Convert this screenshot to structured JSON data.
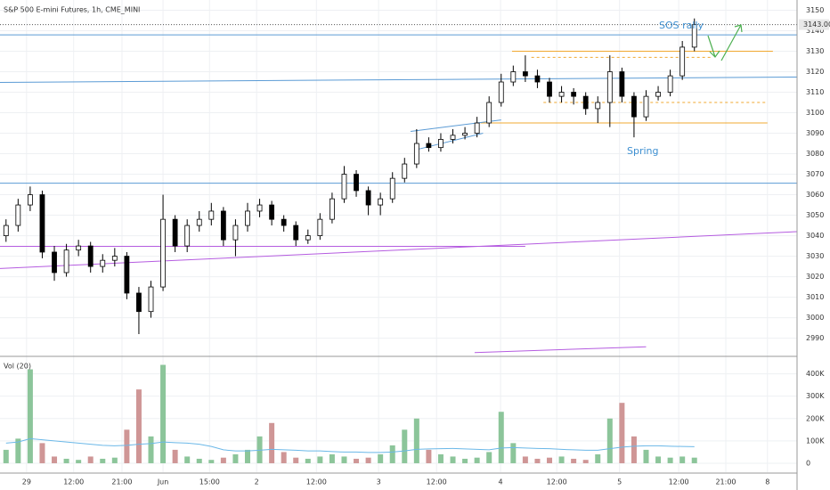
{
  "chart_data": {
    "type": "candlestick",
    "title": "S&P 500 E-mini Futures, 1h, CME_MINI",
    "x": [
      1,
      3,
      5,
      7,
      9,
      11,
      13,
      15,
      17,
      19,
      21,
      23,
      25,
      27,
      29,
      31,
      33,
      35,
      37,
      39,
      41,
      43,
      45,
      47,
      49,
      51,
      53,
      55,
      57,
      59,
      61,
      63,
      65,
      67,
      69,
      71,
      73,
      75,
      77,
      79,
      81,
      83,
      85,
      87,
      89,
      91,
      93,
      95,
      97,
      99,
      101,
      103,
      105,
      107,
      109,
      111,
      113,
      115
    ],
    "open": [
      3040,
      3045,
      3055,
      3060,
      3032,
      3022,
      3033,
      3035,
      3025,
      3028,
      3030,
      3012,
      3003,
      3015,
      3048,
      3035,
      3045,
      3048,
      3052,
      3038,
      3045,
      3052,
      3055,
      3048,
      3045,
      3038,
      3040,
      3048,
      3058,
      3070,
      3062,
      3055,
      3058,
      3068,
      3075,
      3085,
      3083,
      3087,
      3089,
      3090,
      3095,
      3105,
      3115,
      3120,
      3118,
      3115,
      3108,
      3110,
      3108,
      3102,
      3105,
      3120,
      3108,
      3098,
      3108,
      3110,
      3118,
      3132
    ],
    "high": [
      3048,
      3058,
      3064,
      3062,
      3035,
      3036,
      3038,
      3037,
      3031,
      3034,
      3032,
      3015,
      3018,
      3060,
      3050,
      3048,
      3052,
      3056,
      3054,
      3048,
      3056,
      3058,
      3057,
      3050,
      3047,
      3043,
      3051,
      3061,
      3074,
      3072,
      3064,
      3061,
      3071,
      3078,
      3092,
      3088,
      3090,
      3092,
      3093,
      3098,
      3108,
      3119,
      3123,
      3128,
      3121,
      3117,
      3113,
      3112,
      3110,
      3108,
      3128,
      3122,
      3110,
      3111,
      3113,
      3121,
      3135,
      3146
    ],
    "low": [
      3037,
      3042,
      3052,
      3029,
      3018,
      3020,
      3030,
      3022,
      3022,
      3025,
      3009,
      2992,
      3000,
      3013,
      3032,
      3032,
      3042,
      3045,
      3035,
      3030,
      3042,
      3049,
      3045,
      3042,
      3035,
      3036,
      3038,
      3046,
      3056,
      3059,
      3050,
      3050,
      3056,
      3066,
      3073,
      3081,
      3081,
      3085,
      3087,
      3088,
      3093,
      3103,
      3113,
      3115,
      3112,
      3105,
      3105,
      3104,
      3099,
      3095,
      3093,
      3105,
      3088,
      3096,
      3106,
      3108,
      3116,
      3130
    ],
    "close": [
      3045,
      3055,
      3060,
      3032,
      3022,
      3033,
      3035,
      3025,
      3028,
      3030,
      3012,
      3003,
      3015,
      3048,
      3035,
      3045,
      3048,
      3052,
      3038,
      3045,
      3052,
      3055,
      3048,
      3045,
      3038,
      3040,
      3048,
      3058,
      3070,
      3062,
      3055,
      3058,
      3068,
      3075,
      3085,
      3083,
      3087,
      3089,
      3090,
      3095,
      3105,
      3115,
      3120,
      3118,
      3115,
      3108,
      3110,
      3108,
      3102,
      3105,
      3120,
      3108,
      3098,
      3108,
      3110,
      3118,
      3132,
      3143
    ],
    "xlim": [
      0,
      132
    ],
    "xticks": [
      {
        "value": 4.4,
        "label": "29"
      },
      {
        "value": 12.2,
        "label": "12:00"
      },
      {
        "value": 20.2,
        "label": "21:00"
      },
      {
        "value": 27,
        "label": "Jun"
      },
      {
        "value": 34.7,
        "label": "15:00"
      },
      {
        "value": 42.5,
        "label": "2"
      },
      {
        "value": 52.4,
        "label": "12:00"
      },
      {
        "value": 62.7,
        "label": "3"
      },
      {
        "value": 72.3,
        "label": "12:00"
      },
      {
        "value": 82.9,
        "label": "4"
      },
      {
        "value": 92.2,
        "label": "12:00"
      },
      {
        "value": 102.6,
        "label": "5"
      },
      {
        "value": 112.4,
        "label": "12:00"
      },
      {
        "value": 120.2,
        "label": "21:00"
      },
      {
        "value": 127.1,
        "label": "8"
      }
    ],
    "ylim": [
      2982,
      3155
    ],
    "yticks": [
      2990,
      3000,
      3010,
      3020,
      3030,
      3040,
      3050,
      3060,
      3070,
      3080,
      3090,
      3100,
      3110,
      3120,
      3130,
      3140,
      3150
    ],
    "last_price": {
      "value": 3143,
      "label": "3143.00"
    },
    "annotations": [
      "SOS rally",
      "Spring"
    ],
    "lines": [
      {
        "x1": 0,
        "y1": 3138,
        "x2": 132,
        "y2": 3138,
        "color": "#5b9bd5",
        "dashed": false
      },
      {
        "x1": 0,
        "y1": 3114.8,
        "x2": 132,
        "y2": 3117.4,
        "color": "#5b9bd5",
        "dashed": false
      },
      {
        "x1": 0,
        "y1": 3065.6,
        "x2": 132,
        "y2": 3065.6,
        "color": "#5b9bd5",
        "dashed": false
      },
      {
        "x1": 0,
        "y1": 3024,
        "x2": 132,
        "y2": 3042,
        "color": "#b55ce0",
        "dashed": false
      },
      {
        "x1": 0,
        "y1": 3034.8,
        "x2": 87,
        "y2": 3034.8,
        "color": "#b55ce0",
        "dashed": false
      },
      {
        "x1": 78.6,
        "y1": 2983,
        "x2": 107,
        "y2": 2985.8,
        "color": "#b55ce0",
        "dashed": false
      },
      {
        "x1": 84.8,
        "y1": 3130,
        "x2": 128,
        "y2": 3130,
        "color": "#f0a830",
        "dashed": false
      },
      {
        "x1": 79.6,
        "y1": 3095,
        "x2": 127.1,
        "y2": 3095,
        "color": "#f0a830",
        "dashed": false
      },
      {
        "x1": 88,
        "y1": 3127,
        "x2": 118,
        "y2": 3127,
        "color": "#f0a830",
        "dashed": true
      },
      {
        "x1": 90,
        "y1": 3105,
        "x2": 126.8,
        "y2": 3105,
        "color": "#f0a830",
        "dashed": true
      },
      {
        "x1": 68,
        "y1": 3090.9,
        "x2": 83,
        "y2": 3096.5,
        "color": "#5b9bd5",
        "dashed": false
      },
      {
        "x1": 69,
        "y1": 3082,
        "x2": 80,
        "y2": 3090,
        "color": "#5b9bd5",
        "dashed": false
      }
    ],
    "volume": {
      "title": "Vol (20)",
      "values": [
        60000,
        110000,
        420000,
        90000,
        30000,
        20000,
        15000,
        30000,
        20000,
        25000,
        150000,
        330000,
        120000,
        440000,
        60000,
        30000,
        20000,
        15000,
        25000,
        40000,
        60000,
        120000,
        180000,
        50000,
        25000,
        20000,
        30000,
        40000,
        30000,
        20000,
        25000,
        40000,
        80000,
        150000,
        200000,
        60000,
        40000,
        30000,
        20000,
        25000,
        50000,
        230000,
        90000,
        30000,
        20000,
        25000,
        30000,
        20000,
        15000,
        40000,
        200000,
        270000,
        120000,
        60000,
        30000,
        25000,
        30000,
        25000
      ],
      "ma": [
        90000,
        95000,
        110000,
        105000,
        100000,
        95000,
        90000,
        85000,
        80000,
        78000,
        80000,
        85000,
        88000,
        95000,
        92000,
        90000,
        85000,
        75000,
        60000,
        55000,
        55000,
        58000,
        62000,
        60000,
        58000,
        55000,
        55000,
        52000,
        50000,
        50000,
        48000,
        48000,
        50000,
        55000,
        62000,
        64000,
        65000,
        66000,
        64000,
        62000,
        60000,
        68000,
        70000,
        68000,
        66000,
        65000,
        62000,
        60000,
        58000,
        58000,
        65000,
        72000,
        76000,
        78000,
        78000,
        76000,
        75000,
        74000
      ],
      "ylim": [
        -40000,
        470000
      ],
      "yticks": [
        0,
        {
          "value": 100000,
          "label": "100K"
        },
        {
          "value": 200000,
          "label": "200K"
        },
        {
          "value": 300000,
          "label": "300K"
        },
        {
          "value": 400000,
          "label": "400K"
        }
      ]
    }
  }
}
